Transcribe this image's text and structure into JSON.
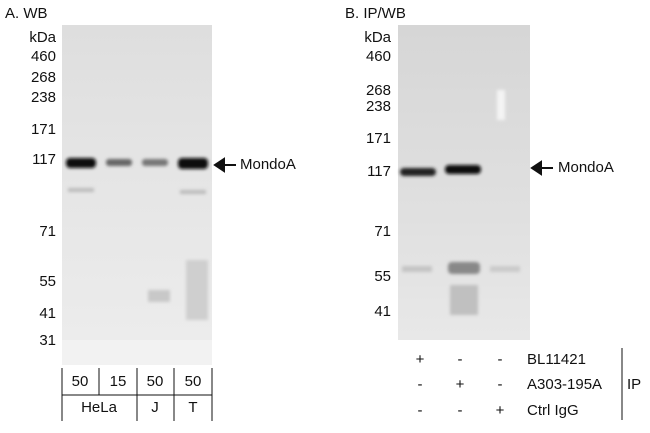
{
  "panels": [
    {
      "title": "A. WB",
      "unit": "kDa",
      "markers": [
        "460",
        "268",
        "238",
        "171",
        "117",
        "71",
        "55",
        "41",
        "31"
      ],
      "target": "MondoA",
      "amounts": [
        "50",
        "15",
        "50",
        "50"
      ],
      "groups": [
        "HeLa",
        "J",
        "T"
      ]
    },
    {
      "title": "B. IP/WB",
      "unit": "kDa",
      "markers": [
        "460",
        "268",
        "238",
        "171",
        "117",
        "71",
        "55",
        "41"
      ],
      "target": "MondoA",
      "conditions": [
        {
          "label": "BL11421",
          "marks": [
            "+",
            "-",
            "-"
          ]
        },
        {
          "label": "A303-195A",
          "marks": [
            "-",
            "+",
            "-"
          ]
        },
        {
          "label": "Ctrl IgG",
          "marks": [
            "-",
            "-",
            "+"
          ]
        }
      ],
      "method": "IP"
    }
  ]
}
